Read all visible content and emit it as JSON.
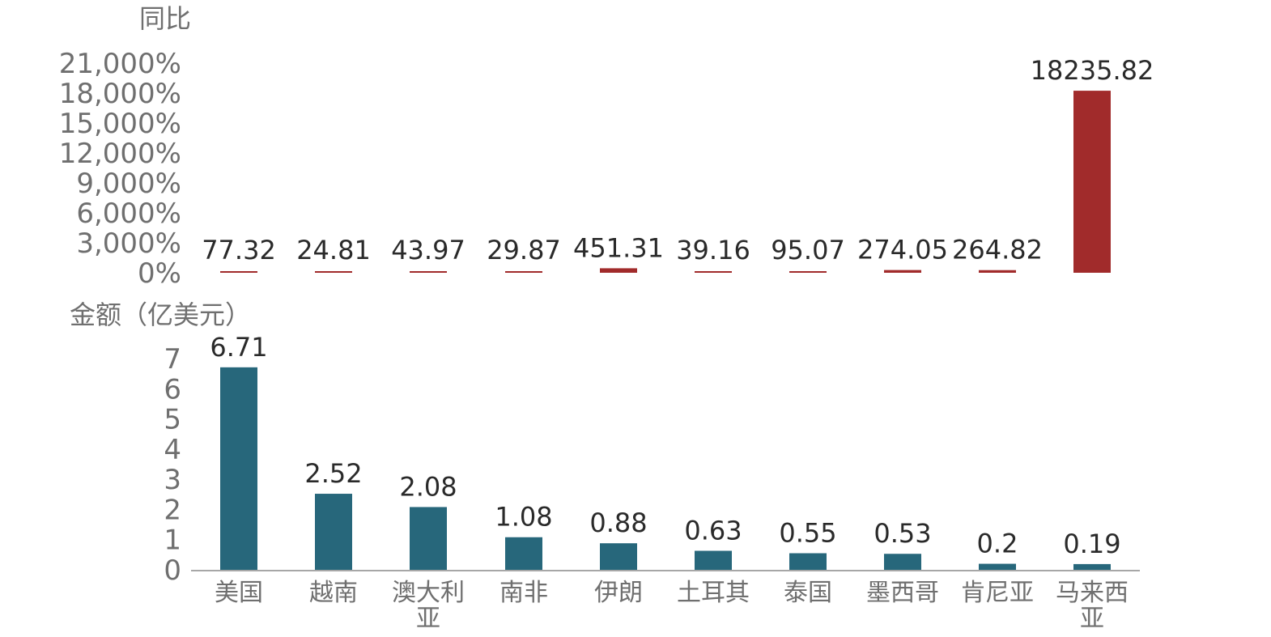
{
  "chart_data": [
    {
      "type": "bar",
      "ylabel": "同比",
      "ylim": [
        0,
        21000
      ],
      "ytick_values": [
        0,
        3000,
        6000,
        9000,
        12000,
        15000,
        18000,
        21000
      ],
      "ytick_labels": [
        "0%",
        "3,000%",
        "6,000%",
        "9,000%",
        "12,000%",
        "15,000%",
        "18,000%",
        "21,000%"
      ],
      "categories": [
        "美国",
        "越南",
        "澳大利亚",
        "南非",
        "伊朗",
        "土耳其",
        "泰国",
        "墨西哥",
        "肯尼亚",
        "马来西亚"
      ],
      "values": [
        77.32,
        24.81,
        43.97,
        29.87,
        451.31,
        39.16,
        95.07,
        274.05,
        264.82,
        18235.82
      ],
      "data_labels": [
        "77.32",
        "24.81",
        "43.97",
        "29.87",
        "451.31",
        "39.16",
        "95.07",
        "274.05",
        "264.82",
        "18235.82"
      ],
      "color": "#a12b2b",
      "grid": false
    },
    {
      "type": "bar",
      "ylabel": "金额（亿美元）",
      "ylim": [
        0,
        7
      ],
      "ytick_values": [
        0,
        1,
        2,
        3,
        4,
        5,
        6,
        7
      ],
      "ytick_labels": [
        "0",
        "1",
        "2",
        "3",
        "4",
        "5",
        "6",
        "7"
      ],
      "categories": [
        "美国",
        "越南",
        "澳大利亚",
        "南非",
        "伊朗",
        "土耳其",
        "泰国",
        "墨西哥",
        "肯尼亚",
        "马来西亚"
      ],
      "category_lines": [
        [
          "美国"
        ],
        [
          "越南"
        ],
        [
          "澳大利",
          "亚"
        ],
        [
          "南非"
        ],
        [
          "伊朗"
        ],
        [
          "土耳其"
        ],
        [
          "泰国"
        ],
        [
          "墨西哥"
        ],
        [
          "肯尼亚"
        ],
        [
          "马来西",
          "亚"
        ]
      ],
      "values": [
        6.71,
        2.52,
        2.08,
        1.08,
        0.88,
        0.63,
        0.55,
        0.53,
        0.2,
        0.19
      ],
      "data_labels": [
        "6.71",
        "2.52",
        "2.08",
        "1.08",
        "0.88",
        "0.63",
        "0.55",
        "0.53",
        "0.2",
        "0.19"
      ],
      "color": "#27677b",
      "grid": false
    }
  ]
}
